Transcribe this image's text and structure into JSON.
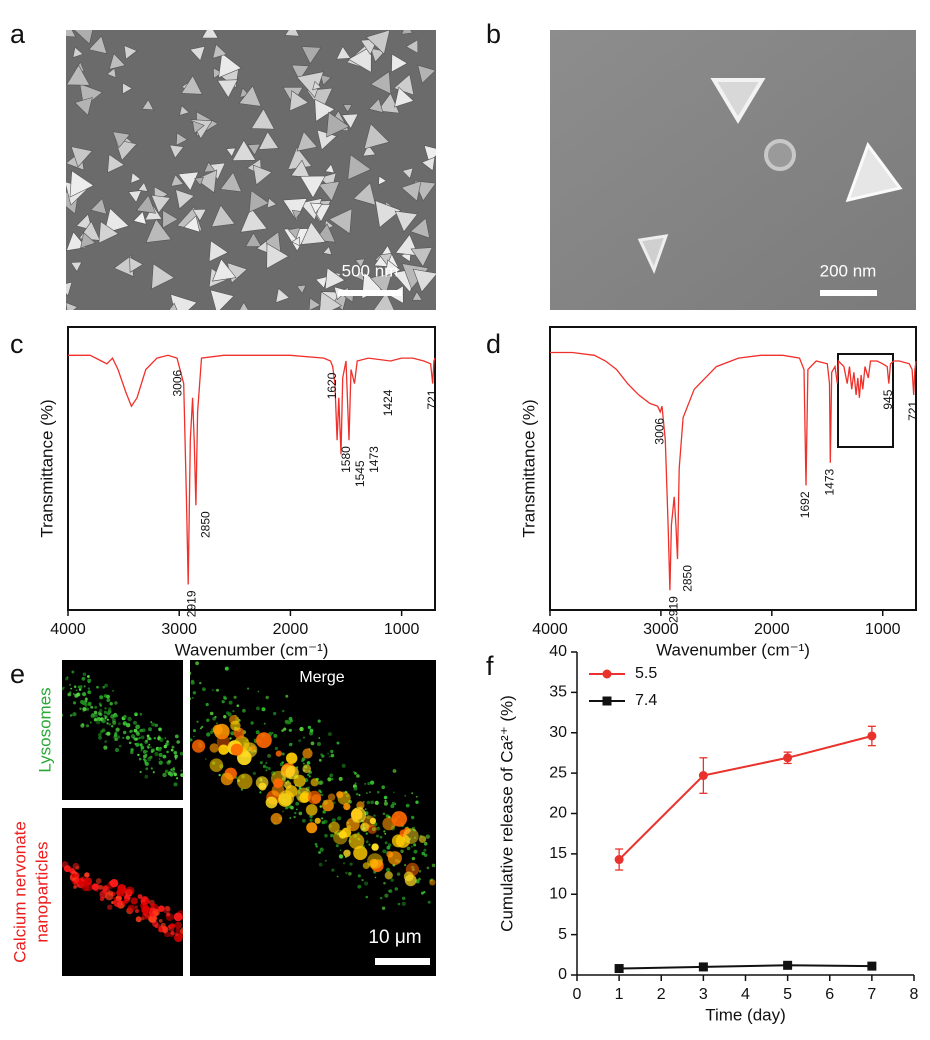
{
  "panels": {
    "a": {
      "label": "a",
      "scale_bar": "500 nm"
    },
    "b": {
      "label": "b",
      "scale_bar": "200 nm"
    },
    "e": {
      "label": "e",
      "top_left": "Lysosomes",
      "bottom_left": [
        "Calcium nervonate",
        "nanoparticles"
      ],
      "right": "Merge",
      "scale_bar": "10 μm"
    }
  },
  "chart_data": [
    {
      "type": "line",
      "panel": "c",
      "xlabel": "Wavenumber (cm⁻¹)",
      "ylabel": "Transmittance (%)",
      "color": "#f0302a",
      "xlim": [
        4000,
        700
      ],
      "xticks": [
        4000,
        3000,
        2000,
        1000
      ],
      "ylim": [
        0,
        100
      ],
      "x": [
        4000,
        3800,
        3700,
        3650,
        3600,
        3550,
        3480,
        3430,
        3380,
        3300,
        3200,
        3100,
        3020,
        3006,
        2960,
        2935,
        2919,
        2900,
        2880,
        2865,
        2850,
        2835,
        2800,
        2600,
        2000,
        1700,
        1640,
        1620,
        1600,
        1580,
        1565,
        1545,
        1530,
        1500,
        1473,
        1455,
        1424,
        1400,
        1300,
        1100,
        1000,
        900,
        800,
        740,
        721,
        710,
        700
      ],
      "values": [
        90,
        90,
        88,
        87,
        89,
        85,
        77,
        72,
        75,
        85,
        89,
        90,
        89,
        87,
        80,
        40,
        9,
        60,
        75,
        60,
        37,
        70,
        89,
        90,
        90,
        89,
        88,
        86,
        80,
        60,
        75,
        55,
        82,
        88,
        60,
        85,
        80,
        88,
        89,
        88,
        89,
        89,
        88,
        87,
        80,
        88,
        89
      ],
      "peaks": [
        3006,
        2919,
        2850,
        1620,
        1580,
        1545,
        1473,
        1424,
        721
      ]
    },
    {
      "type": "line",
      "panel": "d",
      "xlabel": "Wavenumber (cm⁻¹)",
      "ylabel": "Transmittance (%)",
      "color": "#f0302a",
      "xlim": [
        4000,
        700
      ],
      "xticks": [
        4000,
        3000,
        2000,
        1000
      ],
      "ylim": [
        0,
        100
      ],
      "x": [
        4000,
        3800,
        3600,
        3500,
        3400,
        3300,
        3200,
        3100,
        3030,
        3006,
        2990,
        2960,
        2935,
        2919,
        2905,
        2880,
        2865,
        2850,
        2835,
        2800,
        2700,
        2600,
        2500,
        2300,
        2100,
        1900,
        1750,
        1710,
        1692,
        1675,
        1600,
        1500,
        1480,
        1473,
        1460,
        1430,
        1410,
        1400,
        1350,
        1320,
        1300,
        1280,
        1260,
        1240,
        1225,
        1210,
        1195,
        1180,
        1160,
        1130,
        1110,
        1050,
        1000,
        960,
        945,
        930,
        900,
        850,
        760,
        735,
        721,
        710,
        700
      ],
      "values": [
        91,
        91,
        90,
        88,
        85,
        80,
        76,
        73,
        72,
        70,
        72,
        60,
        30,
        7,
        30,
        40,
        30,
        18,
        50,
        68,
        78,
        82,
        86,
        89,
        90,
        90,
        89,
        85,
        44,
        85,
        88,
        87,
        80,
        52,
        84,
        86,
        80,
        88,
        86,
        80,
        86,
        78,
        84,
        76,
        82,
        75,
        83,
        78,
        86,
        82,
        88,
        88,
        87,
        86,
        80,
        87,
        88,
        88,
        87,
        85,
        76,
        85,
        88
      ],
      "peaks": [
        3006,
        2919,
        2850,
        1692,
        1473,
        945,
        721
      ]
    },
    {
      "type": "line",
      "panel": "f",
      "xlabel": "Time (day)",
      "ylabel": "Cumulative release of Ca²⁺ (%)",
      "x": [
        1,
        3,
        5,
        7
      ],
      "xlim": [
        0,
        8
      ],
      "xticks": [
        0,
        1,
        2,
        3,
        4,
        5,
        6,
        7,
        8
      ],
      "ylim": [
        0,
        40
      ],
      "yticks": [
        0,
        5,
        10,
        15,
        20,
        25,
        30,
        35,
        40
      ],
      "legend": "upper left",
      "series": [
        {
          "name": "5.5",
          "color": "#e8322b",
          "marker": "circle",
          "values": [
            14.3,
            24.7,
            26.9,
            29.6
          ],
          "errors": [
            1.3,
            2.2,
            0.7,
            1.2
          ]
        },
        {
          "name": "7.4",
          "color": "#111111",
          "marker": "square",
          "values": [
            0.8,
            1.0,
            1.2,
            1.1
          ],
          "errors": [
            0.2,
            0.2,
            0.2,
            0.2
          ]
        }
      ]
    }
  ]
}
